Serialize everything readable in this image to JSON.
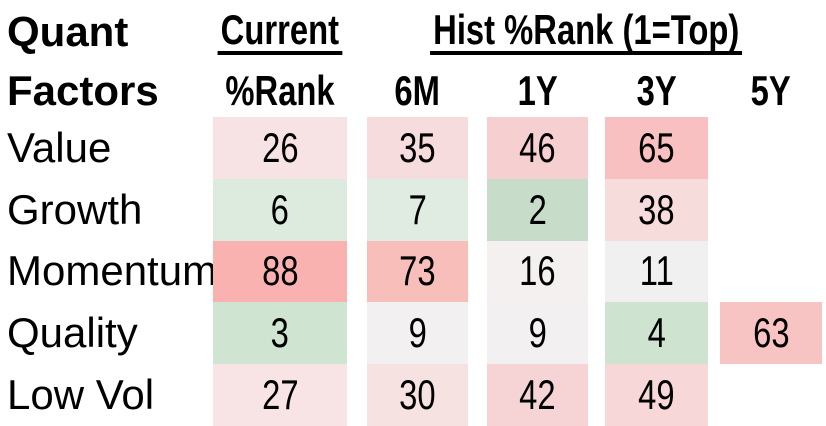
{
  "header": {
    "left_title_line1": "Quant",
    "left_title_line2": "Factors",
    "current_group_label": "Current",
    "hist_group_label": "Hist %Rank (1=Top)",
    "current_sub_label": "%Rank",
    "hist_sub_labels": {
      "m6": "6M",
      "y1": "1Y",
      "y3": "3Y",
      "y5": "5Y"
    }
  },
  "colors": {
    "background": "#ffffff",
    "text": "#000000",
    "strong_red": "#f9b2b0",
    "strong_green": "#c8ddc9",
    "neutral": "#f1f0f1"
  },
  "chart_data": {
    "type": "heatmap",
    "title": "Quant Factors — Current and Historical %Rank (1=Top)",
    "row_labels": [
      "Value",
      "Growth",
      "Momentum",
      "Quality",
      "Low Vol"
    ],
    "column_labels": [
      "Current %Rank",
      "6M",
      "1Y",
      "3Y",
      "5Y"
    ],
    "values_matrix": [
      [
        26,
        35,
        46,
        65,
        null
      ],
      [
        6,
        7,
        2,
        38,
        null
      ],
      [
        88,
        73,
        16,
        11,
        null
      ],
      [
        3,
        9,
        9,
        4,
        63
      ],
      [
        27,
        30,
        42,
        49,
        null
      ]
    ],
    "rows": [
      {
        "label": "Value",
        "cells": [
          {
            "value": "26",
            "bg": "#f8e3e4"
          },
          {
            "value": "35",
            "bg": "#f7dcdd"
          },
          {
            "value": "46",
            "bg": "#f6cfd1"
          },
          {
            "value": "65",
            "bg": "#f8c0c1"
          },
          {
            "value": "",
            "bg": ""
          }
        ]
      },
      {
        "label": "Growth",
        "cells": [
          {
            "value": "6",
            "bg": "#dcebdd"
          },
          {
            "value": "7",
            "bg": "#e0ece1"
          },
          {
            "value": "2",
            "bg": "#c8ddc9"
          },
          {
            "value": "38",
            "bg": "#f7dcdc"
          },
          {
            "value": "",
            "bg": ""
          }
        ]
      },
      {
        "label": "Momentum",
        "cells": [
          {
            "value": "88",
            "bg": "#f9b2b0"
          },
          {
            "value": "73",
            "bg": "#f8beba"
          },
          {
            "value": "16",
            "bg": "#f4f0ef"
          },
          {
            "value": "11",
            "bg": "#f1f0f1"
          },
          {
            "value": "",
            "bg": ""
          }
        ]
      },
      {
        "label": "Quality",
        "cells": [
          {
            "value": "3",
            "bg": "#cfe5d1"
          },
          {
            "value": "9",
            "bg": "#f2f0f1"
          },
          {
            "value": "9",
            "bg": "#f2f0f1"
          },
          {
            "value": "4",
            "bg": "#cee3d0"
          },
          {
            "value": "63",
            "bg": "#f8c3c3"
          }
        ]
      },
      {
        "label": "Low Vol",
        "cells": [
          {
            "value": "27",
            "bg": "#f8e4e4"
          },
          {
            "value": "30",
            "bg": "#f7e2e2"
          },
          {
            "value": "42",
            "bg": "#f6d4d5"
          },
          {
            "value": "49",
            "bg": "#f7d7d8"
          },
          {
            "value": "",
            "bg": ""
          }
        ]
      }
    ]
  }
}
